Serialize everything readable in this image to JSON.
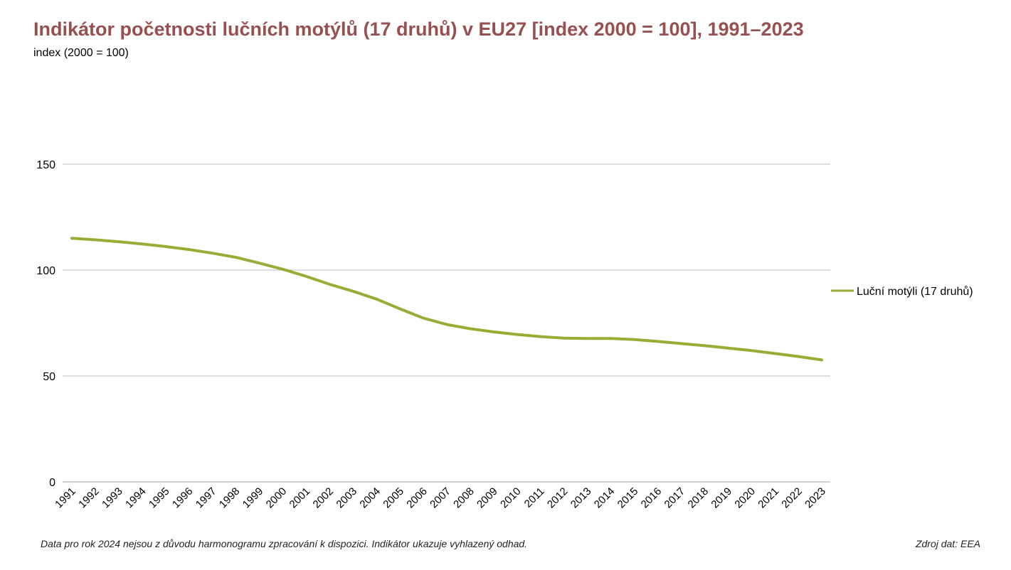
{
  "colors": {
    "title": "#95504f",
    "series": "#98ad35",
    "grid": "#bfbfbf"
  },
  "footer": {
    "note": "Data pro rok 2024 nejsou z důvodu harmonogramu zpracování k dispozici. Indikátor ukazuje vyhlazený odhad.",
    "source": "Zdroj dat: EEA"
  },
  "chart_data": {
    "type": "line",
    "title": "Indikátor početnosti lučních motýlů (17 druhů) v EU27 [index 2000 = 100], 1991–2023",
    "ylabel": "index (2000 = 100)",
    "xlabel": "",
    "ylim": [
      0,
      150
    ],
    "yticks": [
      0,
      50,
      100,
      150
    ],
    "grid": true,
    "legend_position": "right",
    "x": [
      "1991",
      "1992",
      "1993",
      "1994",
      "1995",
      "1996",
      "1997",
      "1998",
      "1999",
      "2000",
      "2001",
      "2002",
      "2003",
      "2004",
      "2005",
      "2006",
      "2007",
      "2008",
      "2009",
      "2010",
      "2011",
      "2012",
      "2013",
      "2014",
      "2015",
      "2016",
      "2017",
      "2018",
      "2019",
      "2020",
      "2021",
      "2022",
      "2023"
    ],
    "series": [
      {
        "name": "Luční motýli (17 druhů)",
        "values": [
          115,
          114.3,
          113.4,
          112.3,
          111.1,
          109.7,
          108,
          106,
          103.3,
          100.4,
          97,
          93.3,
          90,
          86.3,
          81.7,
          77.3,
          74.3,
          72.3,
          70.8,
          69.6,
          68.6,
          67.9,
          67.7,
          67.7,
          67.2,
          66.3,
          65.3,
          64.3,
          63.2,
          62,
          60.6,
          59.2,
          57.6
        ]
      }
    ]
  }
}
